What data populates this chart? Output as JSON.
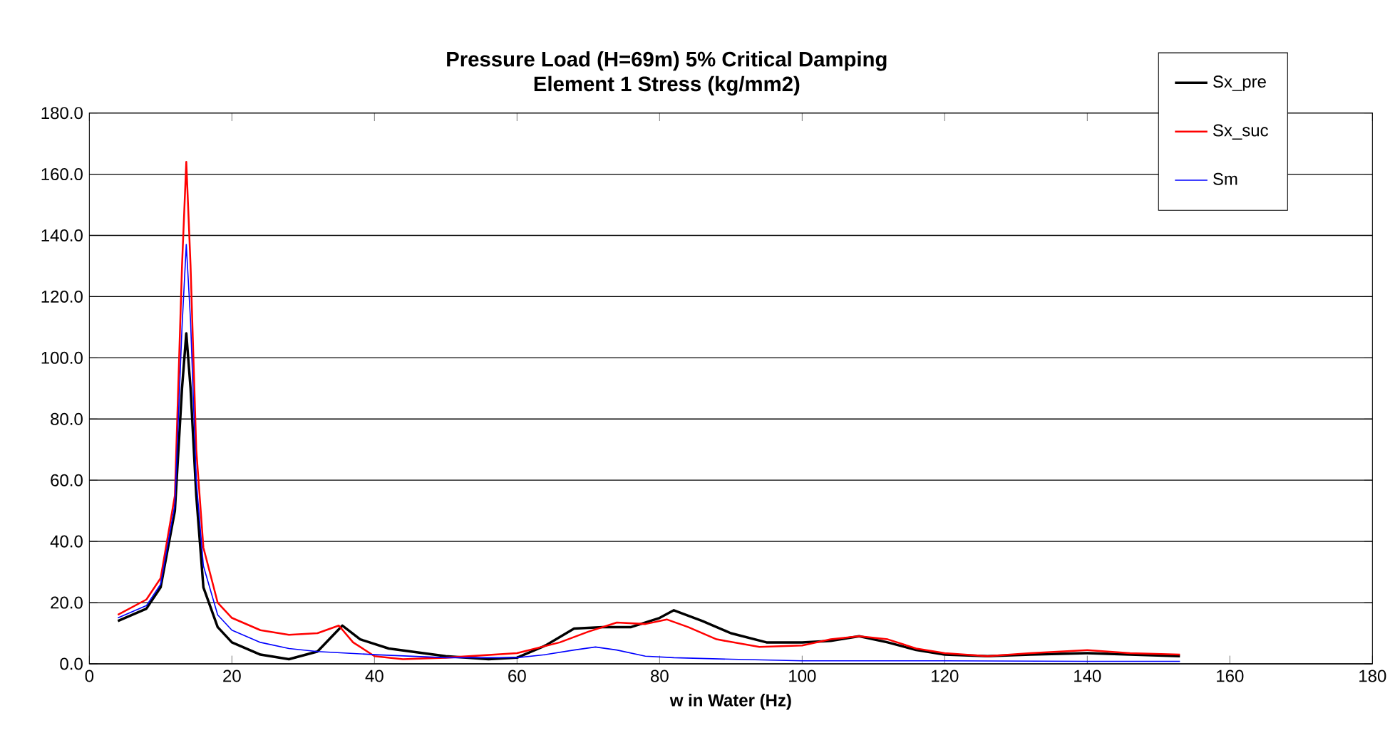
{
  "chart_data": {
    "type": "line",
    "title": "Pressure Load (H=69m) 5% Critical Damping",
    "subtitle": "Element 1 Stress (kg/mm2)",
    "xlabel": "w in Water (Hz)",
    "xlim": [
      0,
      180
    ],
    "xticks": [
      0,
      20,
      40,
      60,
      80,
      100,
      120,
      140,
      160,
      180
    ],
    "ylim": [
      0,
      180
    ],
    "yticks": [
      {
        "value": 0,
        "label": "0.0"
      },
      {
        "value": 20,
        "label": "20.0"
      },
      {
        "value": 40,
        "label": "40.0"
      },
      {
        "value": 60,
        "label": "60.0"
      },
      {
        "value": 80,
        "label": "80.0"
      },
      {
        "value": 100,
        "label": "100.0"
      },
      {
        "value": 120,
        "label": "120.0"
      },
      {
        "value": 140,
        "label": "140.0"
      },
      {
        "value": 160,
        "label": "160.0"
      },
      {
        "value": 180,
        "label": "180.0"
      }
    ],
    "grid": "y",
    "legend": "top right",
    "marker": "none",
    "line_style": "solid",
    "series": [
      {
        "name": "Sx_pre",
        "color": "#000000",
        "x": [
          4,
          8,
          10,
          12,
          13,
          13.6,
          14.2,
          15,
          16,
          18,
          20,
          24,
          28,
          32,
          35.5,
          38,
          42,
          50,
          56,
          60,
          64,
          68,
          72,
          76,
          80,
          82,
          86,
          90,
          95,
          100,
          104,
          108,
          112,
          116,
          120,
          126,
          132,
          140,
          146,
          153
        ],
        "values": [
          14,
          18,
          25,
          50,
          90,
          108,
          90,
          55,
          25,
          12,
          7,
          3,
          1.5,
          4,
          12.5,
          8,
          5,
          2.5,
          1.5,
          2,
          6,
          11.5,
          12,
          12,
          15,
          17.5,
          14,
          10,
          7,
          7,
          7.5,
          9,
          7,
          4.5,
          3,
          2.5,
          3,
          3.5,
          3,
          2.5
        ]
      },
      {
        "name": "Sx_suc",
        "color": "#ff0000",
        "x": [
          4,
          8,
          10,
          12,
          13,
          13.6,
          14.2,
          15,
          16,
          18,
          20,
          24,
          28,
          32,
          35,
          37,
          40,
          44,
          50,
          60,
          66,
          70,
          74,
          78,
          81,
          84,
          88,
          94,
          100,
          104,
          108,
          112,
          116,
          120,
          126,
          132,
          140,
          146,
          153
        ],
        "values": [
          16,
          21,
          28,
          55,
          130,
          164,
          130,
          70,
          38,
          20,
          15,
          11,
          9.5,
          10,
          12.5,
          7,
          2.5,
          1.5,
          2,
          3.5,
          7,
          10.5,
          13.5,
          13,
          14.5,
          12,
          8,
          5.5,
          6,
          8,
          9,
          8,
          5,
          3.5,
          2.5,
          3.5,
          4.5,
          3.5,
          3
        ]
      },
      {
        "name": "Sm",
        "color": "#0000ff",
        "x": [
          4,
          8,
          10,
          12,
          13,
          13.6,
          14.2,
          15,
          16,
          18,
          20,
          24,
          28,
          32,
          40,
          50,
          60,
          64,
          68,
          71,
          74,
          78,
          82,
          90,
          100,
          110,
          120,
          140,
          153
        ],
        "values": [
          15,
          19,
          26,
          52,
          110,
          137,
          112,
          60,
          32,
          16,
          11,
          7,
          5,
          4,
          3,
          2,
          2,
          3,
          4.5,
          5.5,
          4.5,
          2.5,
          2,
          1.5,
          1,
          1,
          1,
          0.8,
          0.8
        ]
      }
    ]
  }
}
